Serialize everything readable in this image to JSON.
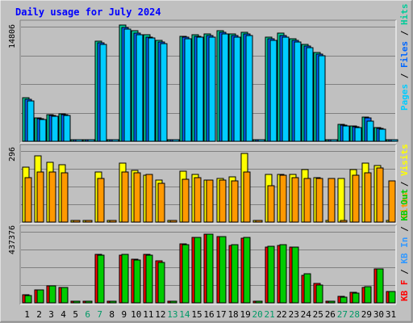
{
  "chart_data": {
    "type": "bar",
    "title": "Daily usage for July 2024",
    "colors": {
      "title": "#0000ff",
      "hits": "#00cc99",
      "files": "#0066ff",
      "pages": "#00ccff",
      "visits": "#ffff00",
      "sites": "#ff9900",
      "kb_in": "#3399ff",
      "kb_out": "#00cc00",
      "kb_f": "#ff0000",
      "weekend": "#009966",
      "weekday": "#000000",
      "plot_bg": "#c0c0c0",
      "grid": "#808080"
    },
    "days": [
      "1",
      "2",
      "3",
      "4",
      "5",
      "6",
      "7",
      "8",
      "9",
      "10",
      "11",
      "12",
      "13",
      "14",
      "15",
      "16",
      "17",
      "18",
      "19",
      "20",
      "21",
      "22",
      "23",
      "24",
      "25",
      "26",
      "27",
      "28",
      "29",
      "30",
      "31"
    ],
    "weekend_days": [
      "6",
      "7",
      "13",
      "14",
      "20",
      "21",
      "27",
      "28"
    ],
    "panels": [
      {
        "id": "top",
        "ymax_label": "14806",
        "ymax": 14806,
        "legend": [
          {
            "text": "Pages",
            "key": "pages"
          },
          {
            "text": " / ",
            "key": "sep"
          },
          {
            "text": "Files",
            "key": "files"
          },
          {
            "text": " / ",
            "key": "sep"
          },
          {
            "text": "Hits",
            "key": "hits"
          }
        ],
        "series": [
          {
            "name": "Hits",
            "key": "hits",
            "values": [
              5600,
              3000,
              3400,
              3500,
              0,
              0,
              12900,
              0,
              15000,
              14300,
              13800,
              13000,
              0,
              13600,
              13800,
              13900,
              14300,
              13900,
              14100,
              0,
              13400,
              14000,
              13200,
              12500,
              11500,
              0,
              2200,
              2000,
              3100,
              1800,
              0
            ]
          },
          {
            "name": "Files",
            "key": "files",
            "values": [
              5400,
              2900,
              3300,
              3400,
              0,
              0,
              12700,
              0,
              14700,
              14000,
              13500,
              12800,
              0,
              13400,
              13600,
              13700,
              14100,
              13700,
              13900,
              0,
              13200,
              13700,
              13000,
              12300,
              11300,
              0,
              2100,
              1900,
              3000,
              1700,
              0
            ]
          },
          {
            "name": "Pages",
            "key": "pages",
            "values": [
              5200,
              2800,
              3200,
              3300,
              0,
              0,
              12500,
              0,
              14500,
              13800,
              13300,
              12600,
              0,
              13200,
              13400,
              13500,
              13900,
              13500,
              13700,
              0,
              13000,
              13500,
              12800,
              12100,
              11100,
              0,
              2000,
              1800,
              2600,
              1600,
              0
            ]
          }
        ]
      },
      {
        "id": "mid",
        "ymax_label": "296",
        "ymax": 296,
        "legend": [
          {
            "text": "Sites",
            "key": "sites"
          },
          {
            "text": " / ",
            "key": "sep"
          },
          {
            "text": "Visits",
            "key": "visits"
          }
        ],
        "series": [
          {
            "name": "Visits",
            "key": "visits",
            "values": [
              230,
              275,
              250,
              240,
              0,
              0,
              210,
              5,
              245,
              215,
              195,
              175,
              0,
              212,
              198,
              175,
              180,
              190,
              285,
              5,
              200,
              200,
              200,
              218,
              185,
              0,
              180,
              220,
              245,
              235,
              0
            ]
          },
          {
            "name": "Sites",
            "key": "sites",
            "values": [
              185,
              210,
              210,
              205,
              5,
              0,
              180,
              5,
              210,
              205,
              200,
              160,
              5,
              178,
              185,
              175,
              175,
              170,
              210,
              5,
              150,
              195,
              185,
              180,
              180,
              180,
              5,
              195,
              205,
              225,
              170
            ]
          }
        ]
      },
      {
        "id": "bot",
        "ymax_label": "437376",
        "ymax": 437376,
        "legend": [
          {
            "text": "KB F",
            "key": "kb_f"
          },
          {
            "text": " / ",
            "key": "sep"
          },
          {
            "text": "KB In",
            "key": "kb_in"
          },
          {
            "text": " / ",
            "key": "sep"
          },
          {
            "text": "KB Out",
            "key": "kb_out"
          }
        ],
        "series": [
          {
            "name": "KB F",
            "key": "kb_f",
            "values": [
              50000,
              82000,
              105000,
              95000,
              0,
              0,
              300000,
              0,
              295000,
              270000,
              296000,
              256000,
              0,
              363000,
              402000,
              420000,
              410000,
              355000,
              400000,
              0,
              345000,
              355000,
              345000,
              170000,
              120000,
              0,
              40000,
              65000,
              95000,
              210000,
              70000
            ]
          },
          {
            "name": "KB Out",
            "key": "kb_out",
            "values": [
              45000,
              78000,
              102000,
              92000,
              0,
              0,
              295000,
              0,
              300000,
              265000,
              292000,
              250000,
              0,
              358000,
              405000,
              420000,
              407000,
              358000,
              403000,
              0,
              350000,
              360000,
              345000,
              180000,
              110000,
              0,
              35000,
              62000,
              100000,
              210000,
              70000
            ]
          }
        ]
      }
    ]
  }
}
